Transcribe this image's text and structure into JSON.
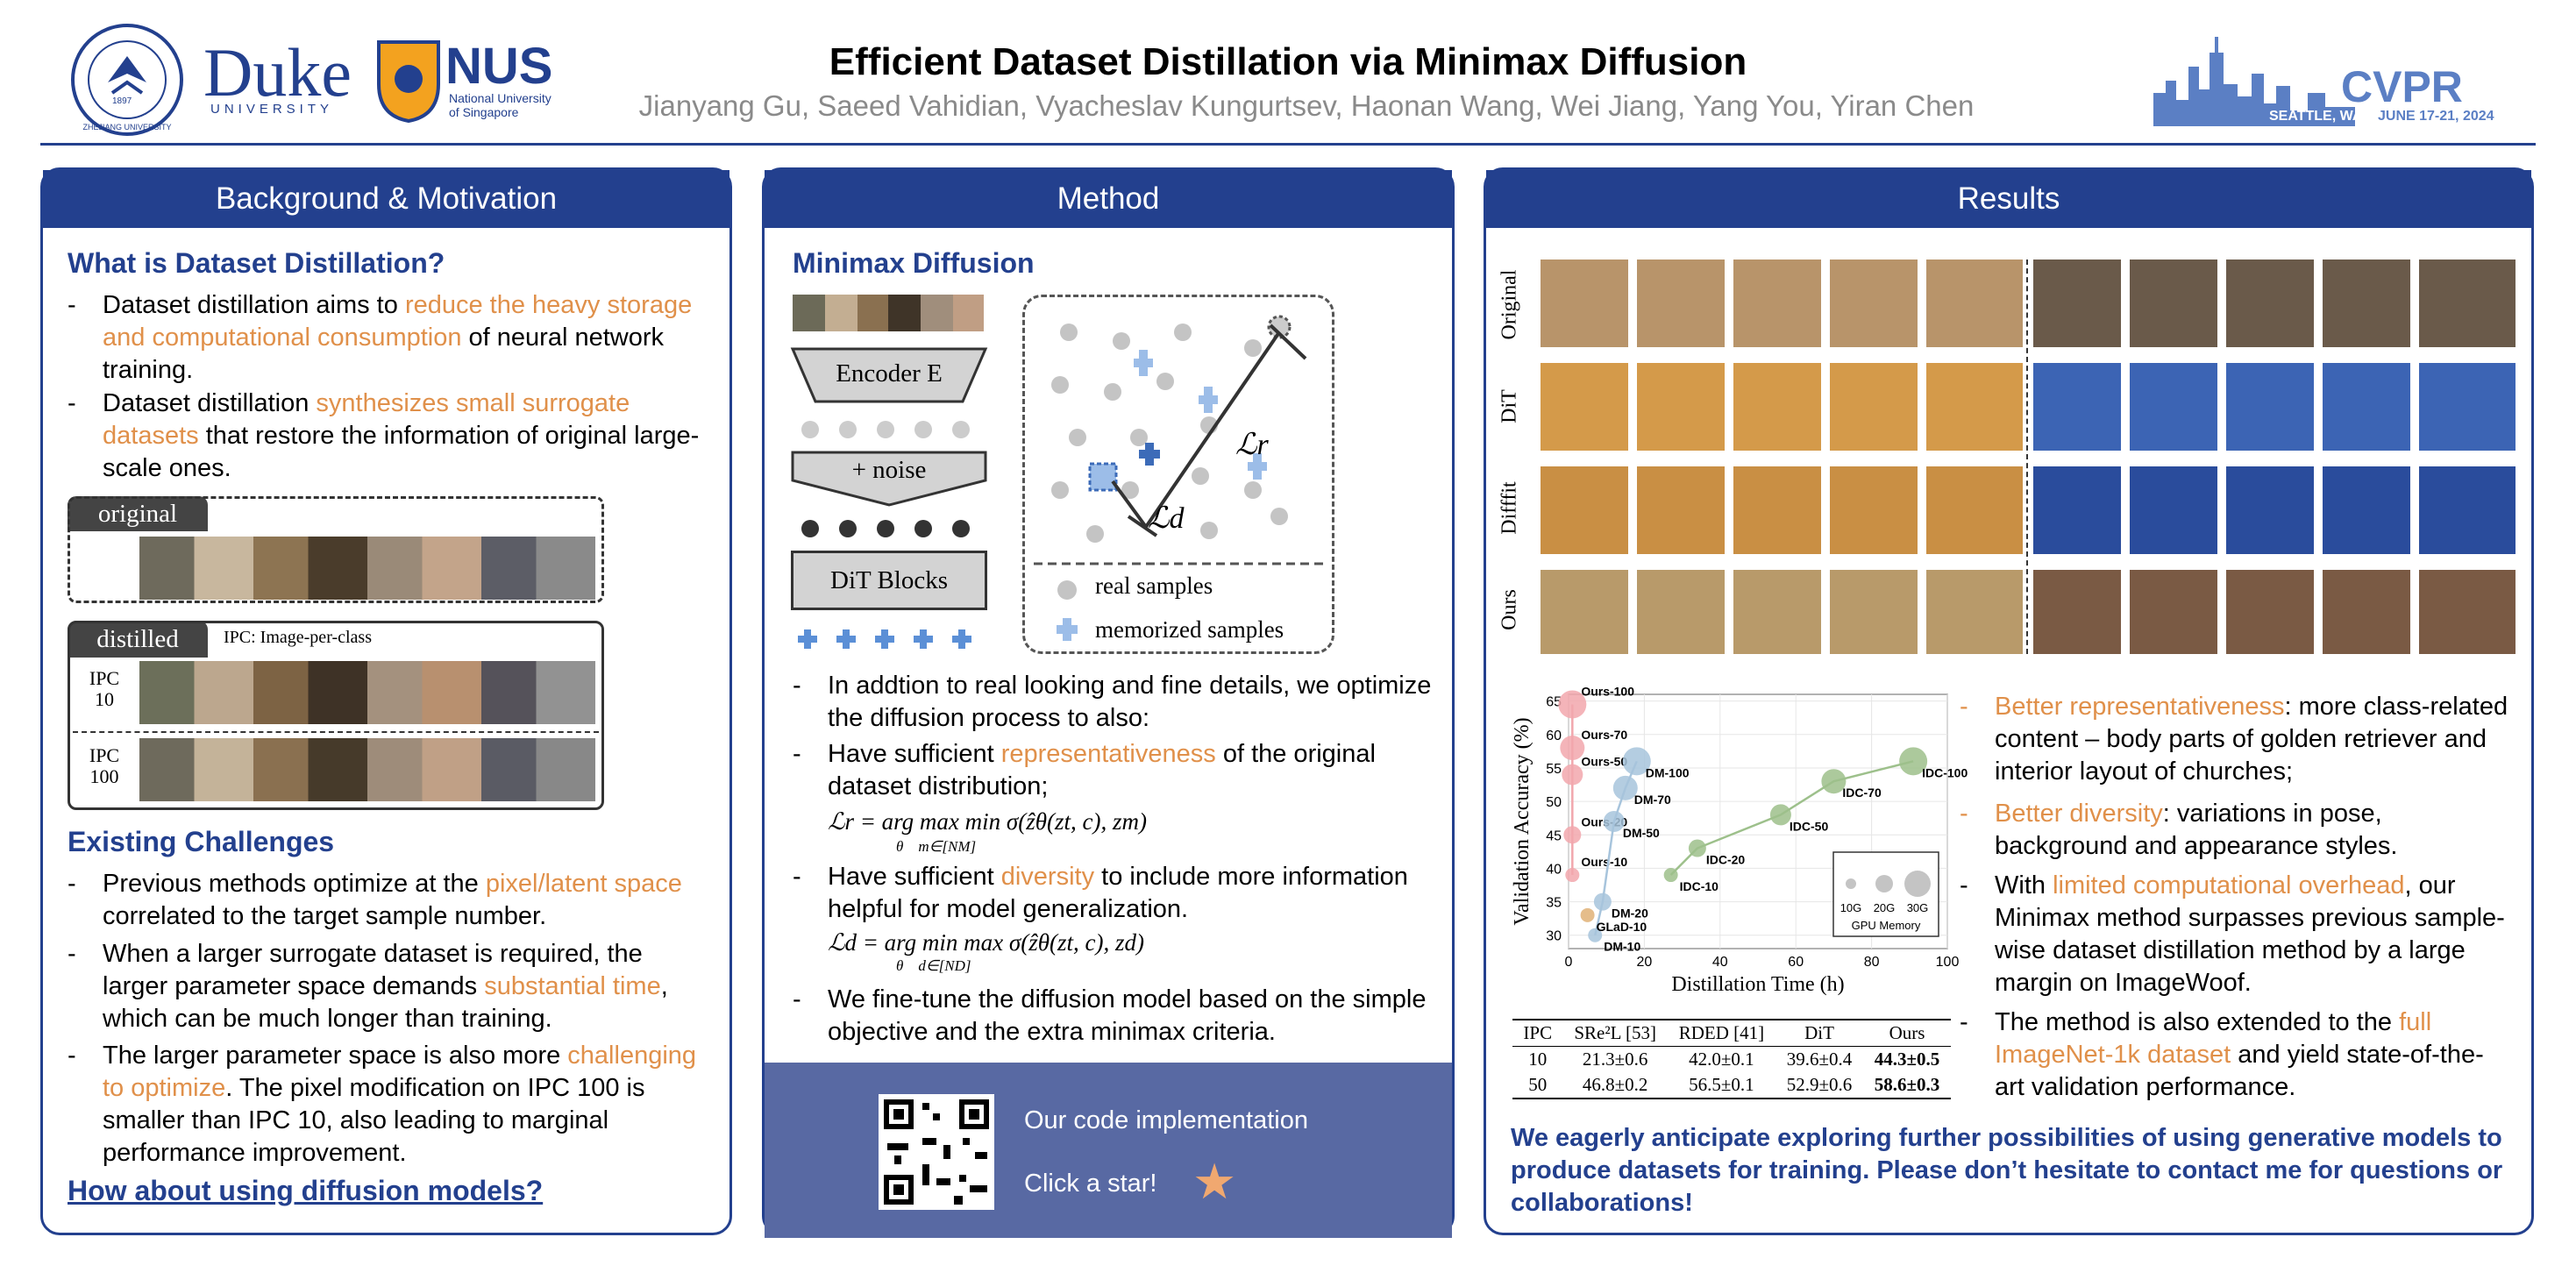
{
  "header": {
    "title": "Efficient Dataset Distillation via Minimax Diffusion",
    "authors": "Jianyang Gu, Saeed Vahidian, Vyacheslav Kungurtsev, Haonan Wang, Wei Jiang, Yang You, Yiran Chen",
    "logos": {
      "duke": "Duke",
      "duke_sub": "UNIVERSITY",
      "nus": "NUS",
      "nus_sub1": "National University",
      "nus_sub2": "of Singapore",
      "cvpr": "CVPR",
      "cvpr_sub": "SEATTLE, WA",
      "cvpr_date": "JUNE 17-21, 2024",
      "zju": "ZHEJIANG UNIVERSITY",
      "zju_year": "1897"
    }
  },
  "colors": {
    "primary": "#23408e",
    "accent": "#e0904a"
  },
  "background": {
    "heading": "Background & Motivation",
    "what_title": "What is Dataset Distillation?",
    "b1_a": "Dataset distillation aims to ",
    "b1_hl": "reduce the heavy storage and computational consumption",
    "b1_b": " of neural network training.",
    "b2_a": "Dataset distillation ",
    "b2_hl": "synthesizes small surrogate datasets",
    "b2_b": " that restore the information of original large-scale ones.",
    "original_label": "original",
    "distilled_label": "distilled",
    "ipc_note": "IPC: Image-per-class",
    "ipc10_a": "IPC",
    "ipc10_b": "10",
    "ipc100_a": "IPC",
    "ipc100_b": "100",
    "challenges_title": "Existing Challenges",
    "c1_a": "Previous methods optimize at the ",
    "c1_hl": "pixel/latent space",
    "c1_b": " correlated to the target sample number.",
    "c2_a": "When a larger surrogate dataset is required, the larger parameter space demands ",
    "c2_hl": "substantial time",
    "c2_b": ", which can be much longer than training.",
    "c3_a": "The larger parameter space is also more ",
    "c3_hl": "challenging to optimize",
    "c3_b": ". The pixel modification on IPC 100 is smaller than IPC 10, also leading to marginal performance improvement.",
    "question": "How about using diffusion models?"
  },
  "method": {
    "heading": "Method",
    "sub": "Minimax Diffusion",
    "encoder": "Encoder E",
    "noise": "+ noise",
    "dit": "DiT Blocks",
    "legend_real": "real samples",
    "legend_mem": "memorized samples",
    "lr": "ℒr",
    "ld": "ℒd",
    "p1": "In addtion to real looking and fine details, we optimize the diffusion process to also:",
    "p2_a": "Have sufficient ",
    "p2_hl": "representativeness",
    "p2_b": " of the original dataset distribution;",
    "eq1": "ℒr = arg max min σ(ẑθ(zt, c), zm)",
    "eq1_sub": "θ    m∈[NM]",
    "p3_a": "Have sufficient ",
    "p3_hl": "diversity",
    "p3_b": " to include more information helpful for model generalization.",
    "eq2": "ℒd = arg min max σ(ẑθ(zt, c), zd)",
    "eq2_sub": "θ    d∈[ND]",
    "p4": "We fine-tune the diffusion model based on the simple objective and the extra minimax criteria.",
    "code": "Our code implementation",
    "star": "Click a star!"
  },
  "results": {
    "heading": "Results",
    "rows": [
      "Original",
      "DiT",
      "Difffit",
      "Ours"
    ],
    "r1_hl": "Better representativeness",
    "r1_b": ": more class-related content – body parts of golden retriever and interior layout of churches;",
    "r2_hl": "Better diversity",
    "r2_b": ": variations in pose, background and appearance styles.",
    "r3_a": "With ",
    "r3_hl": "limited computational overhead",
    "r3_b": ", our Minimax method surpasses previous sample-wise dataset distillation method by a large margin on ImageWoof.",
    "r4_a": "The method is also extended to the ",
    "r4_hl": "full ImageNet-1k dataset",
    "r4_b": " and yield state-of-the-art validation performance.",
    "closing": "We eagerly anticipate exploring further possibilities of using generative models to produce datasets for training. Please don’t hesitate to contact me for questions or collaborations!",
    "table": {
      "headers": [
        "IPC",
        "SRe²L [53]",
        "RDED [41]",
        "DiT",
        "Ours"
      ],
      "rows": [
        [
          "10",
          "21.3±0.6",
          "42.0±0.1",
          "39.6±0.4",
          "44.3±0.5"
        ],
        [
          "50",
          "46.8±0.2",
          "56.5±0.1",
          "52.9±0.6",
          "58.6±0.3"
        ]
      ]
    }
  },
  "chart_data": {
    "type": "scatter",
    "xlabel": "Distillation Time (h)",
    "ylabel": "Validation Accuracy (%)",
    "xlim": [
      0,
      100
    ],
    "ylim": [
      28,
      66
    ],
    "xticks": [
      0,
      20,
      40,
      60,
      80,
      100
    ],
    "yticks": [
      30,
      35,
      40,
      45,
      50,
      55,
      60,
      65
    ],
    "legend_title": "GPU Memory",
    "legend_items": [
      "10G",
      "20G",
      "30G"
    ],
    "series": [
      {
        "name": "Ours",
        "color": "#f2a7ad",
        "points": [
          {
            "label": "Ours-10",
            "x": 1,
            "y": 39
          },
          {
            "label": "Ours-20",
            "x": 1,
            "y": 45
          },
          {
            "label": "Ours-50",
            "x": 1,
            "y": 54
          },
          {
            "label": "Ours-70",
            "x": 1,
            "y": 58
          },
          {
            "label": "Ours-100",
            "x": 1,
            "y": 64.5
          }
        ]
      },
      {
        "name": "DM",
        "color": "#a7c4dc",
        "points": [
          {
            "label": "DM-10",
            "x": 7,
            "y": 30
          },
          {
            "label": "DM-20",
            "x": 9,
            "y": 35
          },
          {
            "label": "DM-50",
            "x": 12,
            "y": 47
          },
          {
            "label": "DM-70",
            "x": 15,
            "y": 52
          },
          {
            "label": "DM-100",
            "x": 18,
            "y": 56
          }
        ]
      },
      {
        "name": "IDC",
        "color": "#9dc08b",
        "points": [
          {
            "label": "IDC-10",
            "x": 27,
            "y": 39
          },
          {
            "label": "IDC-20",
            "x": 34,
            "y": 43
          },
          {
            "label": "IDC-50",
            "x": 56,
            "y": 48
          },
          {
            "label": "IDC-70",
            "x": 70,
            "y": 53
          },
          {
            "label": "IDC-100",
            "x": 91,
            "y": 56
          }
        ]
      },
      {
        "name": "GLaD",
        "color": "#e0b277",
        "points": [
          {
            "label": "GLaD-10",
            "x": 5,
            "y": 33
          }
        ]
      }
    ]
  }
}
